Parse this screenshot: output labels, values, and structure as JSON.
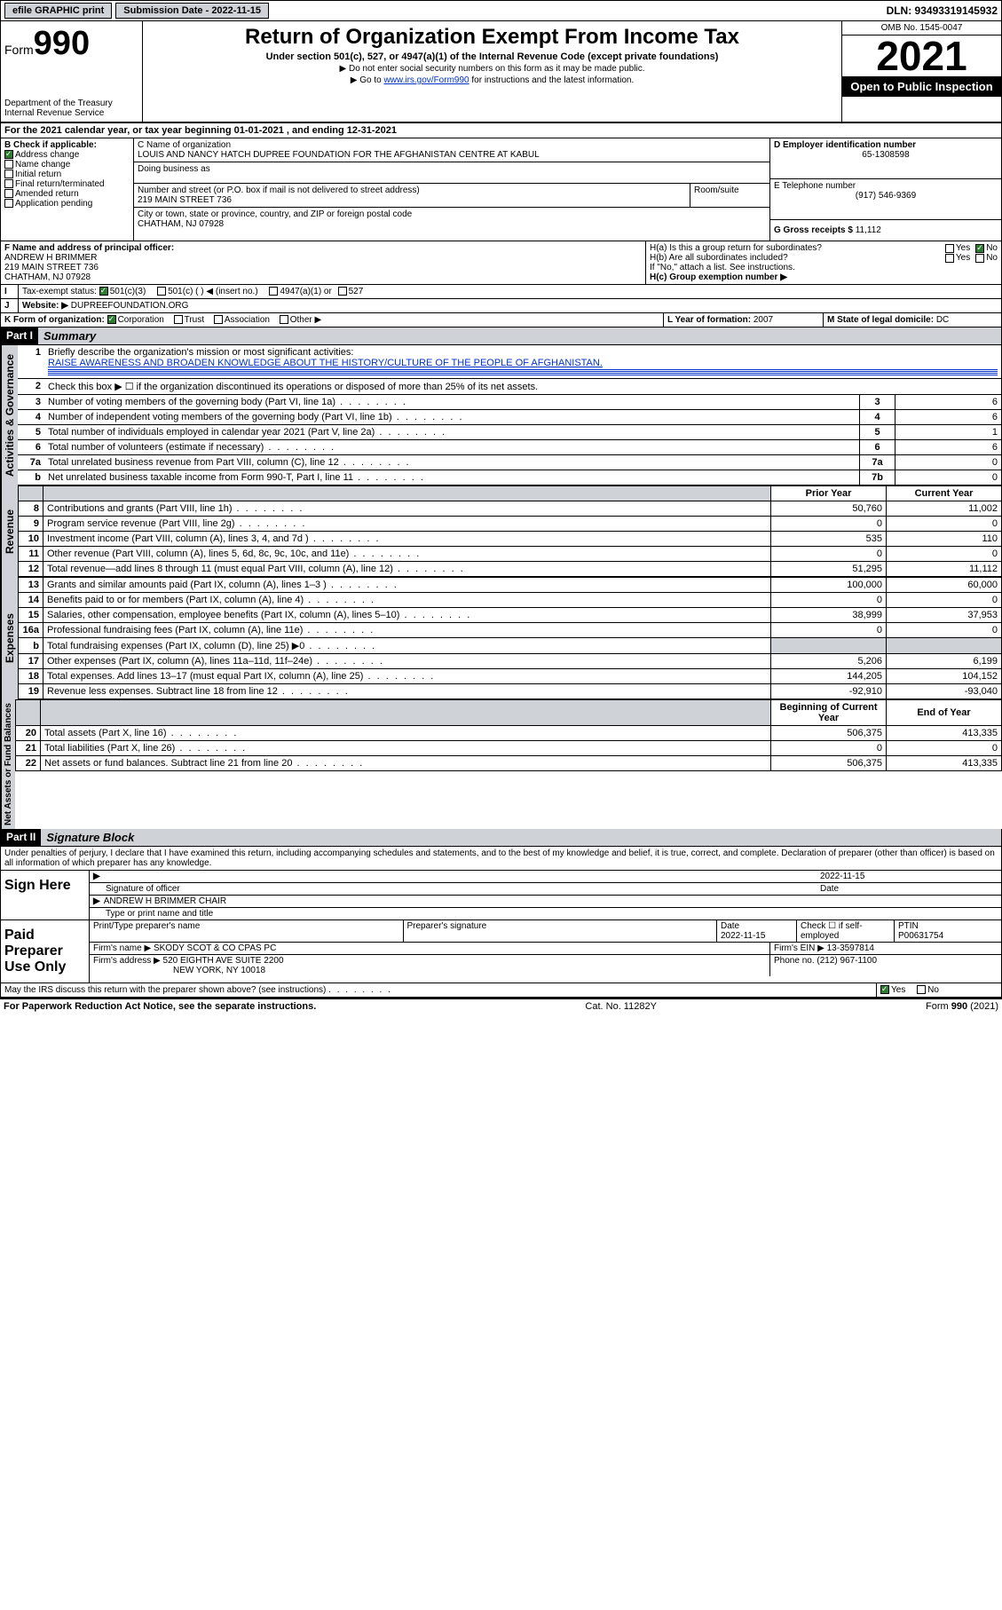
{
  "topbar": {
    "efile": "efile GRAPHIC print",
    "submission_label": "Submission Date - 2022-11-15",
    "dln": "DLN: 93493319145932"
  },
  "header": {
    "form_prefix": "Form",
    "form_number": "990",
    "dept": "Department of the Treasury\nInternal Revenue Service",
    "title": "Return of Organization Exempt From Income Tax",
    "subtitle": "Under section 501(c), 527, or 4947(a)(1) of the Internal Revenue Code (except private foundations)",
    "note1": "▶ Do not enter social security numbers on this form as it may be made public.",
    "note2_pre": "▶ Go to ",
    "note2_link": "www.irs.gov/Form990",
    "note2_post": " for instructions and the latest information.",
    "omb": "OMB No. 1545-0047",
    "year": "2021",
    "open_public": "Open to Public Inspection"
  },
  "period": {
    "text": "For the 2021 calendar year, or tax year beginning 01-01-2021   , and ending 12-31-2021"
  },
  "box_b": {
    "label": "B Check if applicable:",
    "address_change": "Address change",
    "name_change": "Name change",
    "initial_return": "Initial return",
    "final_return": "Final return/terminated",
    "amended": "Amended return",
    "application": "Application pending"
  },
  "box_c": {
    "name_label": "C Name of organization",
    "name": "LOUIS AND NANCY HATCH DUPREE FOUNDATION FOR THE AFGHANISTAN CENTRE AT KABUL",
    "dba_label": "Doing business as",
    "addr_label": "Number and street (or P.O. box if mail is not delivered to street address)",
    "room_label": "Room/suite",
    "addr": "219 MAIN STREET 736",
    "city_label": "City or town, state or province, country, and ZIP or foreign postal code",
    "city": "CHATHAM, NJ  07928"
  },
  "box_d": {
    "label": "D Employer identification number",
    "value": "65-1308598"
  },
  "box_e": {
    "label": "E Telephone number",
    "value": "(917) 546-9369"
  },
  "box_g": {
    "label": "G Gross receipts $",
    "value": "11,112"
  },
  "box_f": {
    "label": "F Name and address of principal officer:",
    "name": "ANDREW H BRIMMER",
    "addr1": "219 MAIN STREET 736",
    "addr2": "CHATHAM, NJ  07928"
  },
  "box_h": {
    "ha": "H(a)  Is this a group return for subordinates?",
    "hb": "H(b)  Are all subordinates included?",
    "hb_note": "If \"No,\" attach a list. See instructions.",
    "hc": "H(c)  Group exemption number ▶",
    "yes": "Yes",
    "no": "No"
  },
  "box_i": {
    "label": "Tax-exempt status:",
    "c3": "501(c)(3)",
    "c_insert": "501(c) (   ) ◀ (insert no.)",
    "a1": "4947(a)(1) or",
    "s527": "527"
  },
  "box_j": {
    "label": "Website: ▶",
    "value": "DUPREEFOUNDATION.ORG"
  },
  "box_k": {
    "label": "K Form of organization:",
    "corp": "Corporation",
    "trust": "Trust",
    "assoc": "Association",
    "other": "Other ▶"
  },
  "box_l": {
    "label": "L Year of formation:",
    "value": "2007"
  },
  "box_m": {
    "label": "M State of legal domicile:",
    "value": "DC"
  },
  "part1": {
    "hdr": "Part I",
    "title": "Summary",
    "q1_label": "Briefly describe the organization's mission or most significant activities:",
    "q1_value": "RAISE AWARENESS AND BROADEN KNOWLEDGE ABOUT THE HISTORY/CULTURE OF THE PEOPLE OF AFGHANISTAN.",
    "q2": "Check this box ▶ ☐  if the organization discontinued its operations or disposed of more than 25% of its net assets.",
    "rows_gov": [
      {
        "n": "3",
        "t": "Number of voting members of the governing body (Part VI, line 1a)",
        "box": "3",
        "v": "6"
      },
      {
        "n": "4",
        "t": "Number of independent voting members of the governing body (Part VI, line 1b)",
        "box": "4",
        "v": "6"
      },
      {
        "n": "5",
        "t": "Total number of individuals employed in calendar year 2021 (Part V, line 2a)",
        "box": "5",
        "v": "1"
      },
      {
        "n": "6",
        "t": "Total number of volunteers (estimate if necessary)",
        "box": "6",
        "v": "6"
      },
      {
        "n": "7a",
        "t": "Total unrelated business revenue from Part VIII, column (C), line 12",
        "box": "7a",
        "v": "0"
      },
      {
        "n": "b",
        "t": "Net unrelated business taxable income from Form 990-T, Part I, line 11",
        "box": "7b",
        "v": "0"
      }
    ],
    "col_prior": "Prior Year",
    "col_current": "Current Year",
    "rows_rev": [
      {
        "n": "8",
        "t": "Contributions and grants (Part VIII, line 1h)",
        "py": "50,760",
        "cy": "11,002"
      },
      {
        "n": "9",
        "t": "Program service revenue (Part VIII, line 2g)",
        "py": "0",
        "cy": "0"
      },
      {
        "n": "10",
        "t": "Investment income (Part VIII, column (A), lines 3, 4, and 7d )",
        "py": "535",
        "cy": "110"
      },
      {
        "n": "11",
        "t": "Other revenue (Part VIII, column (A), lines 5, 6d, 8c, 9c, 10c, and 11e)",
        "py": "0",
        "cy": "0"
      },
      {
        "n": "12",
        "t": "Total revenue—add lines 8 through 11 (must equal Part VIII, column (A), line 12)",
        "py": "51,295",
        "cy": "11,112"
      }
    ],
    "rows_exp": [
      {
        "n": "13",
        "t": "Grants and similar amounts paid (Part IX, column (A), lines 1–3 )",
        "py": "100,000",
        "cy": "60,000"
      },
      {
        "n": "14",
        "t": "Benefits paid to or for members (Part IX, column (A), line 4)",
        "py": "0",
        "cy": "0"
      },
      {
        "n": "15",
        "t": "Salaries, other compensation, employee benefits (Part IX, column (A), lines 5–10)",
        "py": "38,999",
        "cy": "37,953"
      },
      {
        "n": "16a",
        "t": "Professional fundraising fees (Part IX, column (A), line 11e)",
        "py": "0",
        "cy": "0"
      },
      {
        "n": "b",
        "t": "Total fundraising expenses (Part IX, column (D), line 25) ▶0",
        "py": "grey",
        "cy": "grey"
      },
      {
        "n": "17",
        "t": "Other expenses (Part IX, column (A), lines 11a–11d, 11f–24e)",
        "py": "5,206",
        "cy": "6,199"
      },
      {
        "n": "18",
        "t": "Total expenses. Add lines 13–17 (must equal Part IX, column (A), line 25)",
        "py": "144,205",
        "cy": "104,152"
      },
      {
        "n": "19",
        "t": "Revenue less expenses. Subtract line 18 from line 12",
        "py": "-92,910",
        "cy": "-93,040"
      }
    ],
    "col_begin": "Beginning of Current Year",
    "col_end": "End of Year",
    "rows_net": [
      {
        "n": "20",
        "t": "Total assets (Part X, line 16)",
        "py": "506,375",
        "cy": "413,335"
      },
      {
        "n": "21",
        "t": "Total liabilities (Part X, line 26)",
        "py": "0",
        "cy": "0"
      },
      {
        "n": "22",
        "t": "Net assets or fund balances. Subtract line 21 from line 20",
        "py": "506,375",
        "cy": "413,335"
      }
    ],
    "tab_gov": "Activities & Governance",
    "tab_rev": "Revenue",
    "tab_exp": "Expenses",
    "tab_net": "Net Assets or Fund Balances"
  },
  "part2": {
    "hdr": "Part II",
    "title": "Signature Block",
    "decl": "Under penalties of perjury, I declare that I have examined this return, including accompanying schedules and statements, and to the best of my knowledge and belief, it is true, correct, and complete. Declaration of preparer (other than officer) is based on all information of which preparer has any knowledge.",
    "sign_here": "Sign Here",
    "sig_officer": "Signature of officer",
    "sig_date": "2022-11-15",
    "date_lbl": "Date",
    "officer_name": "ANDREW H BRIMMER  CHAIR",
    "type_name": "Type or print name and title",
    "paid": "Paid Preparer Use Only",
    "prep_name_lbl": "Print/Type preparer's name",
    "prep_sig_lbl": "Preparer's signature",
    "prep_date_lbl": "Date",
    "prep_date": "2022-11-15",
    "check_if": "Check ☐ if self-employed",
    "ptin_lbl": "PTIN",
    "ptin": "P00631754",
    "firm_name_lbl": "Firm's name    ▶",
    "firm_name": "SKODY SCOT & CO CPAS PC",
    "firm_ein_lbl": "Firm's EIN ▶",
    "firm_ein": "13-3597814",
    "firm_addr_lbl": "Firm's address ▶",
    "firm_addr1": "520 EIGHTH AVE SUITE 2200",
    "firm_addr2": "NEW YORK, NY  10018",
    "phone_lbl": "Phone no.",
    "phone": "(212) 967-1100",
    "may_irs": "May the IRS discuss this return with the preparer shown above? (see instructions)",
    "yes": "Yes",
    "no": "No"
  },
  "footer": {
    "left": "For Paperwork Reduction Act Notice, see the separate instructions.",
    "mid": "Cat. No. 11282Y",
    "right": "Form 990 (2021)"
  }
}
